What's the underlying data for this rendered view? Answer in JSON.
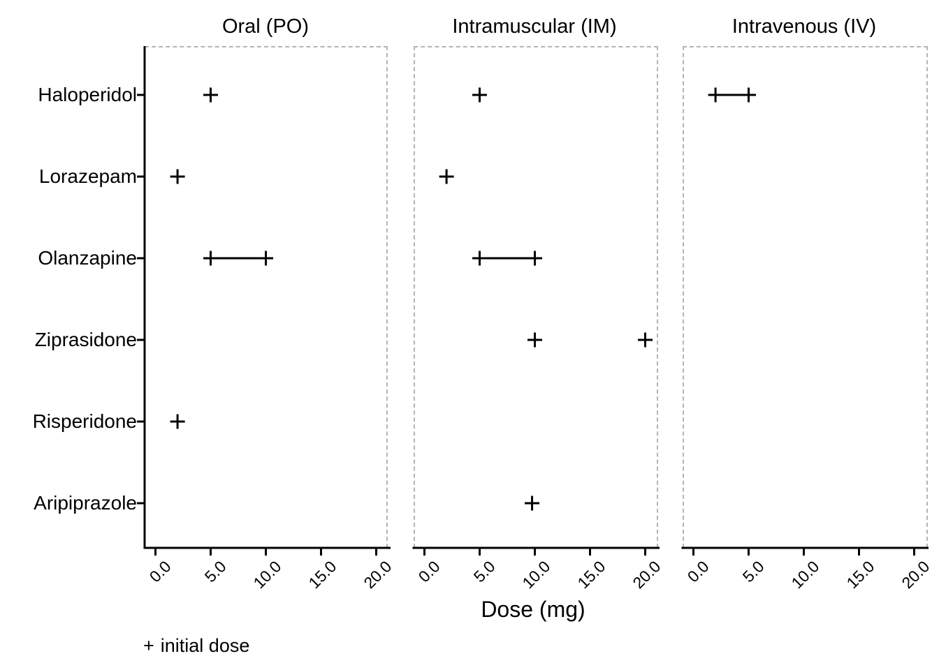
{
  "chart_data": {
    "type": "scatter",
    "title": "",
    "xlabel": "Dose (mg)",
    "ylabel": "",
    "categories": [
      "Haloperidol",
      "Lorazepam",
      "Olanzapine",
      "Ziprasidone",
      "Risperidone",
      "Aripiprazole"
    ],
    "facet_titles": [
      "Oral (PO)",
      "Intramuscular (IM)",
      "Intravenous (IV)"
    ],
    "x_ticks": [
      "0.0",
      "5.0",
      "10.0",
      "15.0",
      "20.0"
    ],
    "x_tick_values": [
      0,
      5,
      10,
      15,
      20
    ],
    "xlim": [
      0,
      21
    ],
    "grid": false,
    "marker": "plus",
    "legend": {
      "symbol": "+",
      "label": "initial dose",
      "position": "bottom-left"
    },
    "panels": [
      {
        "title": "Oral (PO)",
        "points": [
          {
            "drug": "Haloperidol",
            "doses": [
              5
            ],
            "range": false
          },
          {
            "drug": "Lorazepam",
            "doses": [
              2
            ],
            "range": false
          },
          {
            "drug": "Olanzapine",
            "doses": [
              5,
              10
            ],
            "range": true
          },
          {
            "drug": "Risperidone",
            "doses": [
              2
            ],
            "range": false
          }
        ]
      },
      {
        "title": "Intramuscular (IM)",
        "points": [
          {
            "drug": "Haloperidol",
            "doses": [
              5
            ],
            "range": false
          },
          {
            "drug": "Lorazepam",
            "doses": [
              2
            ],
            "range": false
          },
          {
            "drug": "Olanzapine",
            "doses": [
              5,
              10
            ],
            "range": true
          },
          {
            "drug": "Ziprasidone",
            "doses": [
              10,
              20
            ],
            "range": false
          },
          {
            "drug": "Aripiprazole",
            "doses": [
              9.75
            ],
            "range": false
          }
        ]
      },
      {
        "title": "Intravenous (IV)",
        "points": [
          {
            "drug": "Haloperidol",
            "doses": [
              2,
              5
            ],
            "range": true
          }
        ]
      }
    ],
    "colors": {
      "marker": "#000000",
      "axis": "#000000",
      "text": "#000000",
      "panel_border": "#b4b4b4",
      "background": "#ffffff"
    }
  }
}
